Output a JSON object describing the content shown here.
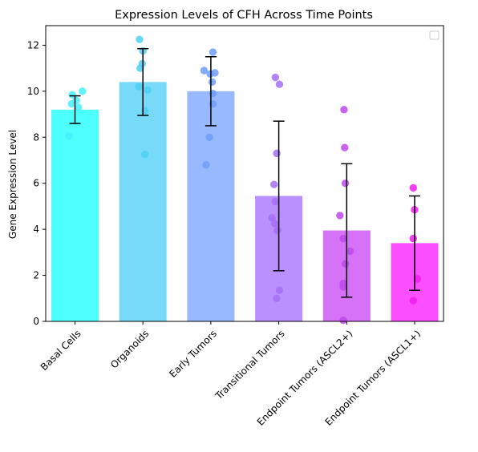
{
  "chart_data": {
    "type": "bar",
    "title": "Expression Levels of CFH Across Time Points",
    "xlabel": "",
    "ylabel": "Gene Expression Level",
    "ylim": [
      0,
      12.85
    ],
    "yticks": [
      0,
      2,
      4,
      6,
      8,
      10,
      12
    ],
    "grid": false,
    "legend": {
      "placement": "top-right",
      "entries": []
    },
    "categories": [
      "Basal Cells",
      "Organoids",
      "Early Tumors",
      "Transitional Tumors",
      "Endpoint Tumors (ASCL2+)",
      "Endpoint Tumors (ASCL1+)"
    ],
    "values": [
      9.2,
      10.4,
      10.0,
      5.45,
      3.95,
      3.4
    ],
    "error": [
      0.6,
      1.45,
      1.5,
      3.25,
      2.9,
      2.05
    ],
    "colors": [
      "#44ffff",
      "#6fd8f8",
      "#94b5ff",
      "#b68aff",
      "#d46af8",
      "#fa44ff"
    ],
    "point_colors": [
      "#44f0ff",
      "#4ed0f5",
      "#6f9ef8",
      "#a56ef5",
      "#c048ec",
      "#f21cf2"
    ],
    "points": [
      [
        {
          "x": -0.04,
          "y": 9.85
        },
        {
          "x": 0.05,
          "y": 9.3
        },
        {
          "x": 0.11,
          "y": 10.0
        },
        {
          "x": -0.09,
          "y": 8.05
        },
        {
          "x": -0.05,
          "y": 9.45
        },
        {
          "x": 0.02,
          "y": 9.6
        }
      ],
      [
        {
          "x": -0.05,
          "y": 12.25
        },
        {
          "x": 0.0,
          "y": 11.75
        },
        {
          "x": -0.01,
          "y": 11.2
        },
        {
          "x": -0.04,
          "y": 11.0
        },
        {
          "x": 0.07,
          "y": 10.05
        },
        {
          "x": -0.06,
          "y": 10.2
        },
        {
          "x": 0.03,
          "y": 9.15
        },
        {
          "x": 0.03,
          "y": 7.25
        }
      ],
      [
        {
          "x": 0.03,
          "y": 11.7
        },
        {
          "x": -0.1,
          "y": 10.9
        },
        {
          "x": 0.06,
          "y": 10.8
        },
        {
          "x": -0.01,
          "y": 10.75
        },
        {
          "x": 0.02,
          "y": 10.4
        },
        {
          "x": 0.03,
          "y": 9.9
        },
        {
          "x": 0.03,
          "y": 9.45
        },
        {
          "x": -0.02,
          "y": 8.0
        },
        {
          "x": -0.07,
          "y": 6.8
        }
      ],
      [
        {
          "x": -0.05,
          "y": 10.6
        },
        {
          "x": 0.01,
          "y": 10.3
        },
        {
          "x": -0.03,
          "y": 7.3
        },
        {
          "x": -0.07,
          "y": 5.95
        },
        {
          "x": -0.05,
          "y": 5.2
        },
        {
          "x": -0.1,
          "y": 4.5
        },
        {
          "x": -0.06,
          "y": 4.25
        },
        {
          "x": -0.02,
          "y": 3.95
        },
        {
          "x": 0.01,
          "y": 1.35
        },
        {
          "x": -0.03,
          "y": 1.0
        }
      ],
      [
        {
          "x": -0.04,
          "y": 9.2
        },
        {
          "x": -0.03,
          "y": 7.55
        },
        {
          "x": -0.02,
          "y": 6.0
        },
        {
          "x": -0.1,
          "y": 4.6
        },
        {
          "x": -0.05,
          "y": 3.6
        },
        {
          "x": 0.05,
          "y": 3.05
        },
        {
          "x": -0.02,
          "y": 2.5
        },
        {
          "x": -0.05,
          "y": 1.65
        },
        {
          "x": -0.05,
          "y": 1.5
        },
        {
          "x": -0.05,
          "y": 0.05
        }
      ],
      [
        {
          "x": -0.02,
          "y": 5.8
        },
        {
          "x": 0.0,
          "y": 4.85
        },
        {
          "x": -0.02,
          "y": 3.6
        },
        {
          "x": 0.04,
          "y": 1.85
        },
        {
          "x": -0.02,
          "y": 0.9
        }
      ]
    ]
  }
}
